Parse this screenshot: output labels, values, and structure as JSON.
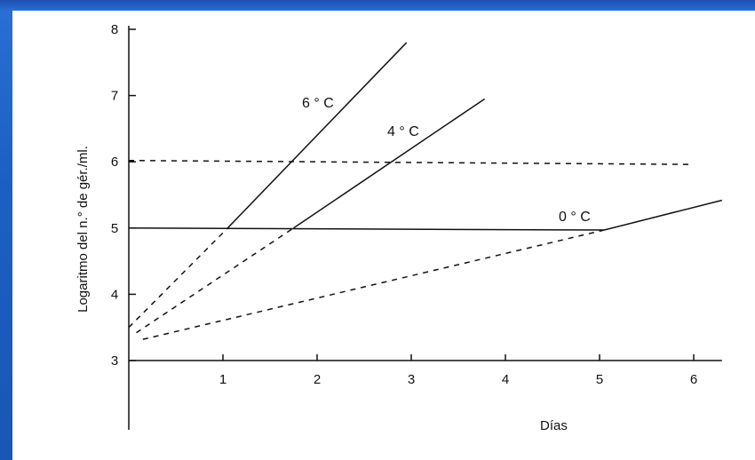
{
  "chart_data": {
    "type": "line",
    "title": "",
    "xlabel": "Días",
    "ylabel": "Logaritmo del n.° de gér./ml.",
    "xlim": [
      0,
      6.3
    ],
    "ylim": [
      3,
      8
    ],
    "x_ticks": [
      "1",
      "2",
      "3",
      "4",
      "5",
      "6"
    ],
    "y_ticks": [
      "3",
      "4",
      "5",
      "6",
      "7",
      "8"
    ],
    "series": [
      {
        "name": "6 ° C",
        "style": "dashed-then-solid",
        "dashed": [
          [
            0.0,
            3.5
          ],
          [
            1.05,
            5.0
          ]
        ],
        "solid": [
          [
            1.05,
            5.0
          ],
          [
            2.95,
            7.8
          ]
        ]
      },
      {
        "name": "4 ° C",
        "style": "dashed-then-solid",
        "dashed": [
          [
            0.08,
            3.42
          ],
          [
            1.75,
            5.0
          ]
        ],
        "solid": [
          [
            1.75,
            5.0
          ],
          [
            3.78,
            6.95
          ]
        ]
      },
      {
        "name": "0 ° C",
        "style": "dashed-then-solid",
        "dashed": [
          [
            0.15,
            3.32
          ],
          [
            5.05,
            4.97
          ]
        ],
        "solid": [
          [
            5.05,
            4.97
          ],
          [
            6.3,
            5.42
          ]
        ]
      }
    ],
    "reference_lines": [
      {
        "y_start": 6.02,
        "y_end": 5.96,
        "x_start": 0,
        "x_end": 6.0,
        "style": "dashed"
      },
      {
        "y_start": 5.0,
        "y_end": 4.97,
        "x_start": 0,
        "x_end": 5.05,
        "style": "solid"
      }
    ],
    "colors": {
      "ink": "#111111",
      "background": "#ffffff",
      "frame": "#1f62c8"
    }
  }
}
